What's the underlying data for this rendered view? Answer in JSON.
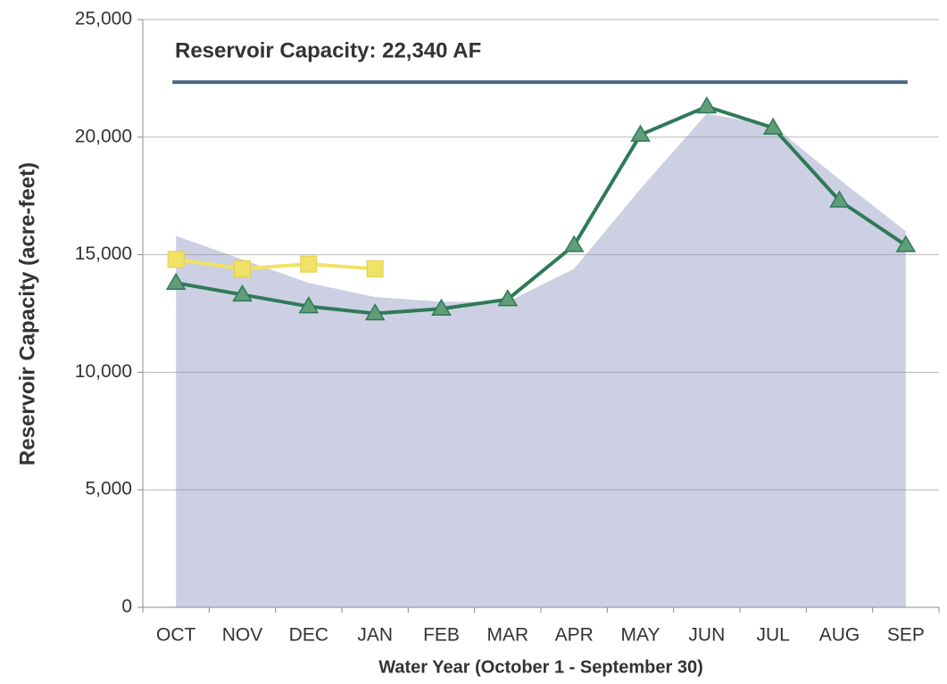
{
  "chart_data": {
    "type": "line",
    "annotation": "Reservoir Capacity: 22,340 AF",
    "capacity": 22340,
    "capacity_color": "#4a6785",
    "xlabel": "Water Year (October 1 - September 30)",
    "ylabel": "Reservoir Capacity (acre-feet)",
    "categories": [
      "OCT",
      "NOV",
      "DEC",
      "JAN",
      "FEB",
      "MAR",
      "APR",
      "MAY",
      "JUN",
      "JUL",
      "AUG",
      "SEP"
    ],
    "area": {
      "color": "#cdd0e3",
      "values": [
        15800,
        14800,
        13800,
        13200,
        13000,
        13000,
        14400,
        17800,
        21000,
        20500,
        18200,
        16000
      ]
    },
    "series": [
      {
        "color": "#2f7a57",
        "marker": "triangle",
        "values": [
          13800,
          13300,
          12800,
          12500,
          12700,
          13100,
          15400,
          20100,
          21300,
          20400,
          17300,
          15400
        ]
      },
      {
        "color": "#f0e264",
        "marker": "square",
        "values": [
          14800,
          14400,
          14600,
          14400,
          null,
          null,
          null,
          null,
          null,
          null,
          null,
          null
        ]
      }
    ],
    "ylim": [
      0,
      25000
    ],
    "yticks": [
      0,
      {
        "value": 5000,
        "label": "5,000"
      },
      {
        "value": 10000,
        "label": "10,000"
      },
      {
        "value": 15000,
        "label": "15,000"
      },
      {
        "value": 20000,
        "label": "20,000"
      },
      {
        "value": 25000,
        "label": "25,000"
      }
    ],
    "grid": true
  }
}
